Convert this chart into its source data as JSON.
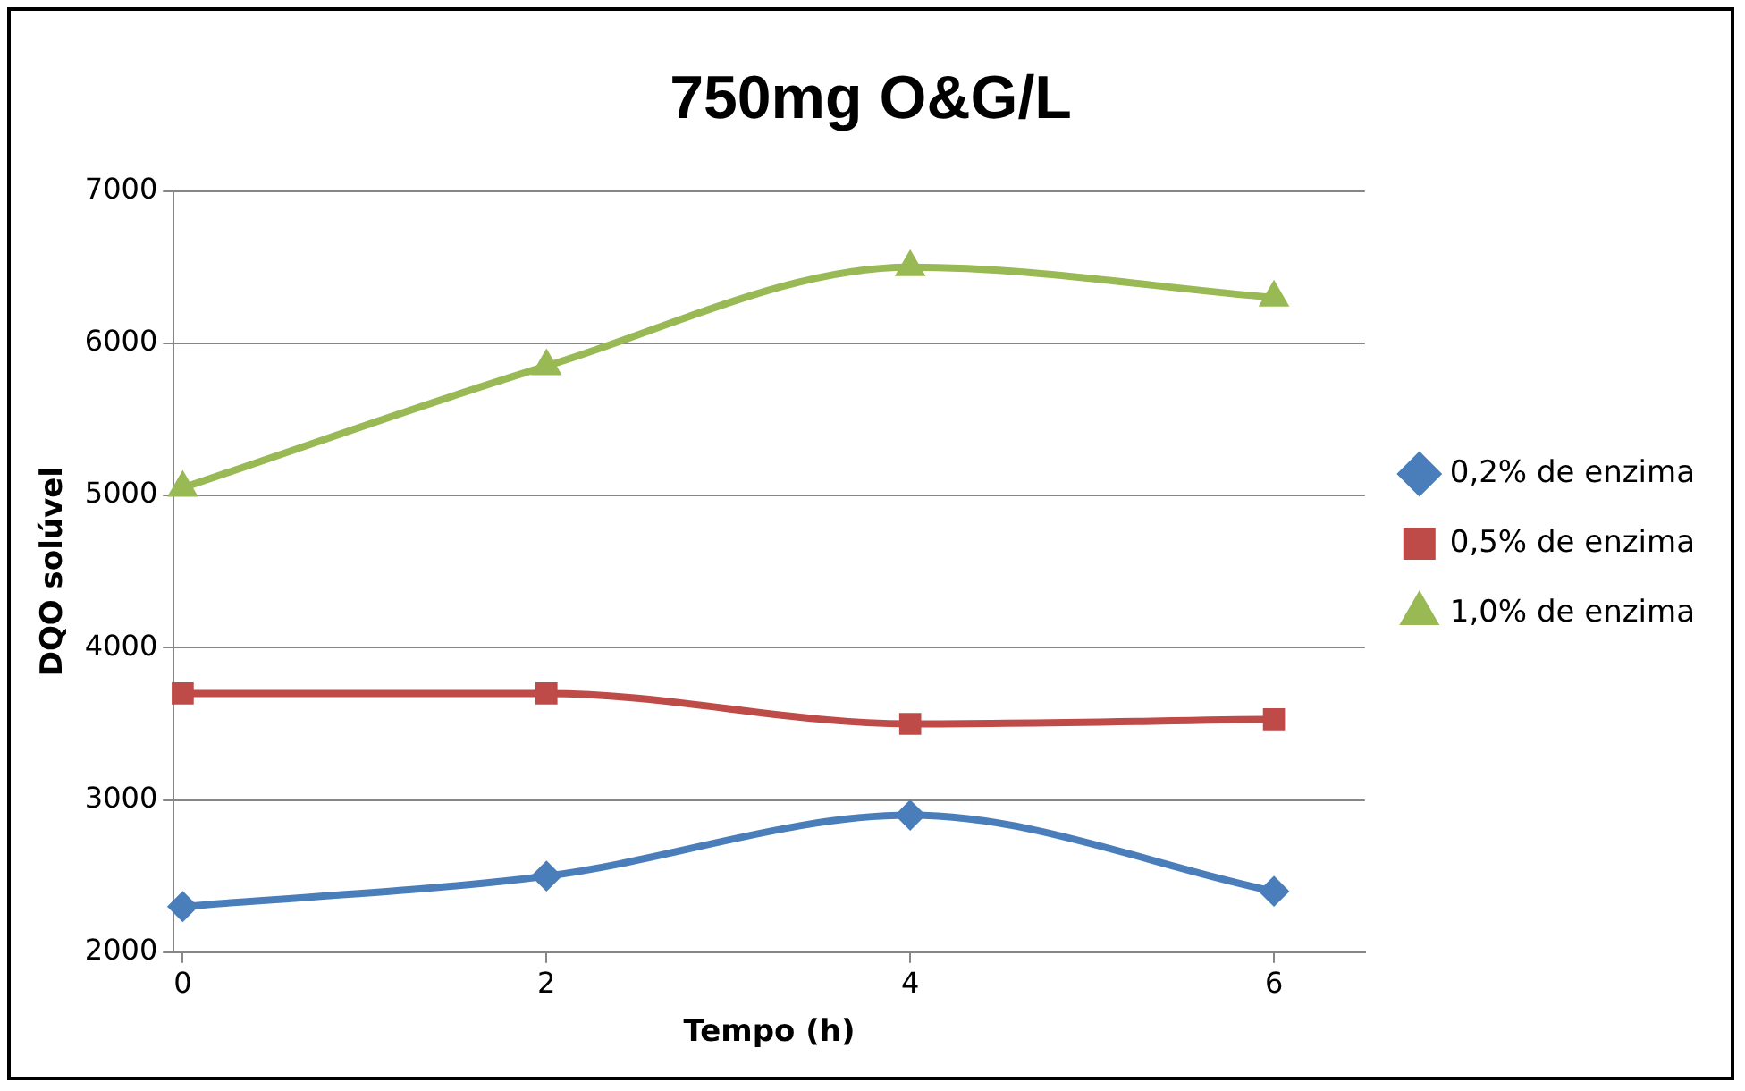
{
  "chart_data": {
    "type": "line",
    "title": "750mg O&G/L",
    "xlabel": "Tempo (h)",
    "ylabel": "DQO solúvel",
    "x": [
      0,
      2,
      4,
      6
    ],
    "xlim": [
      -0.05,
      6.5
    ],
    "xticks": [
      0,
      2,
      4,
      6
    ],
    "ylim": [
      2000,
      7000
    ],
    "yticks": [
      2000,
      3000,
      4000,
      5000,
      6000,
      7000
    ],
    "grid": "y",
    "legend": "right",
    "series": [
      {
        "name": "0,2% de enzima",
        "color": "#4a7ebb",
        "marker": "diamond",
        "values": [
          2300,
          2500,
          2900,
          2400
        ]
      },
      {
        "name": "0,5% de enzima",
        "color": "#be4b48",
        "marker": "square",
        "values": [
          3700,
          3700,
          3500,
          3530
        ]
      },
      {
        "name": "1,0% de enzima",
        "color": "#98b954",
        "marker": "triangle",
        "values": [
          5050,
          5850,
          6500,
          6300
        ]
      }
    ]
  }
}
